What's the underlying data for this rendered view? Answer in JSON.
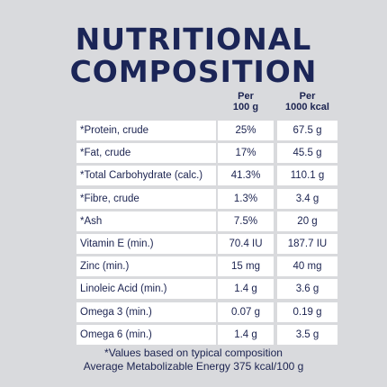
{
  "title": [
    "NUTRITIONAL",
    "COMPOSITION"
  ],
  "table": {
    "headers": [
      [
        "Per",
        "100 g"
      ],
      [
        "Per",
        "1000 kcal"
      ]
    ],
    "rows": [
      [
        "*Protein, crude",
        "25%",
        "67.5 g"
      ],
      [
        "*Fat, crude",
        "17%",
        "45.5 g"
      ],
      [
        "*Total Carbohydrate (calc.)",
        "41.3%",
        "110.1 g"
      ],
      [
        "*Fibre, crude",
        "1.3%",
        "3.4 g"
      ],
      [
        "*Ash",
        "7.5%",
        "20 g"
      ],
      [
        "Vitamin E (min.)",
        "70.4 IU",
        "187.7 IU"
      ],
      [
        "Zinc (min.)",
        "15 mg",
        "40 mg"
      ],
      [
        "Linoleic Acid (min.)",
        "1.4 g",
        "3.6 g"
      ],
      [
        "Omega 3 (min.)",
        "0.07 g",
        "0.19 g"
      ],
      [
        "Omega 6 (min.)",
        "1.4 g",
        "3.5 g"
      ]
    ]
  },
  "footnotes": [
    "*Values based on typical composition",
    "Average Metabolizable Energy 375 kcal/100 g"
  ]
}
